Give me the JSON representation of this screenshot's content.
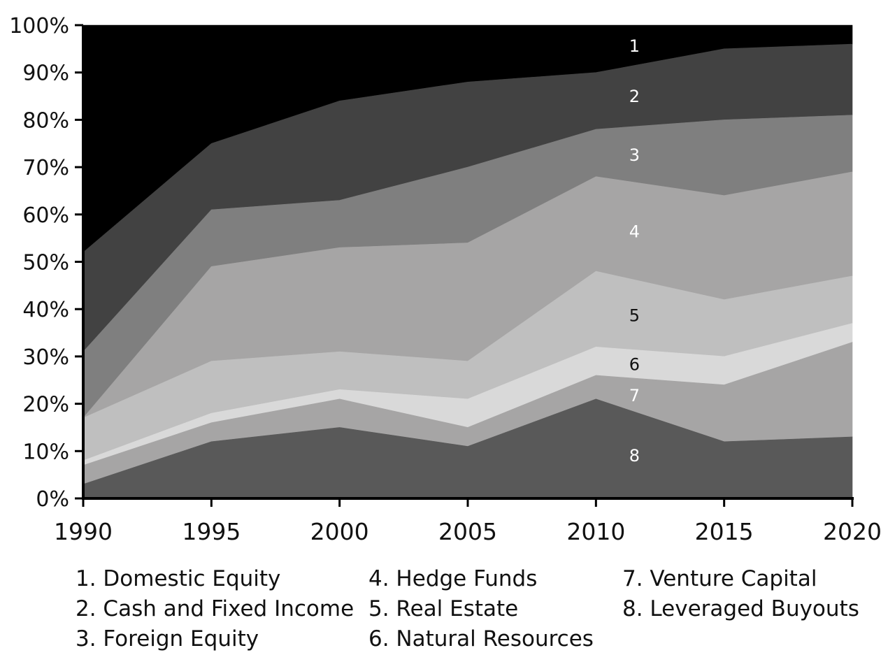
{
  "chart_data": {
    "type": "area",
    "stacked": true,
    "x": [
      1990,
      1995,
      2000,
      2005,
      2010,
      2015,
      2020
    ],
    "x_tick_labels": [
      "1990",
      "1995",
      "2000",
      "2005",
      "2010",
      "2015",
      "2020"
    ],
    "ylim": [
      0,
      100
    ],
    "y_tick_labels": [
      "0%",
      "10%",
      "20%",
      "30%",
      "40%",
      "50%",
      "60%",
      "70%",
      "80%",
      "90%",
      "100%"
    ],
    "title": "",
    "xlabel": "",
    "ylabel": "",
    "grid": false,
    "legend_position": "bottom",
    "series": [
      {
        "name": "Domestic Equity",
        "number": "1",
        "legend_label": "1. Domestic Equity",
        "values": [
          48,
          25,
          16,
          12,
          10,
          5,
          4
        ],
        "color": "#000000",
        "label_color": "#ffffff"
      },
      {
        "name": "Cash and Fixed Income",
        "number": "2",
        "legend_label": "2. Cash and Fixed Income",
        "values": [
          21,
          14,
          21,
          18,
          12,
          15,
          15
        ],
        "color": "#424242",
        "label_color": "#ffffff"
      },
      {
        "name": "Foreign Equity",
        "number": "3",
        "legend_label": "3. Foreign Equity",
        "values": [
          14,
          12,
          10,
          16,
          10,
          16,
          12
        ],
        "color": "#7f7f7f",
        "label_color": "#ffffff"
      },
      {
        "name": "Hedge Funds",
        "number": "4",
        "legend_label": "4. Hedge Funds",
        "values": [
          0,
          20,
          22,
          25,
          20,
          22,
          22
        ],
        "color": "#a6a5a5",
        "label_color": "#ffffff"
      },
      {
        "name": "Real Estate",
        "number": "5",
        "legend_label": "5. Real Estate",
        "values": [
          9,
          11,
          8,
          8,
          16,
          12,
          10
        ],
        "color": "#bfbfbf",
        "label_color": "#111111"
      },
      {
        "name": "Natural Resources",
        "number": "6",
        "legend_label": "6. Natural Resources",
        "values": [
          1,
          2,
          2,
          6,
          6,
          6,
          4
        ],
        "color": "#d9d9d9",
        "label_color": "#111111"
      },
      {
        "name": "Venture Capital",
        "number": "7",
        "legend_label": "7. Venture Capital",
        "values": [
          4,
          4,
          6,
          4,
          5,
          12,
          20
        ],
        "color": "#a6a5a5",
        "label_color": "#ffffff"
      },
      {
        "name": "Leveraged Buyouts",
        "number": "8",
        "legend_label": "8. Leveraged Buyouts",
        "values": [
          3,
          12,
          15,
          11,
          21,
          12,
          13
        ],
        "color": "#595959",
        "label_color": "#ffffff"
      }
    ]
  }
}
